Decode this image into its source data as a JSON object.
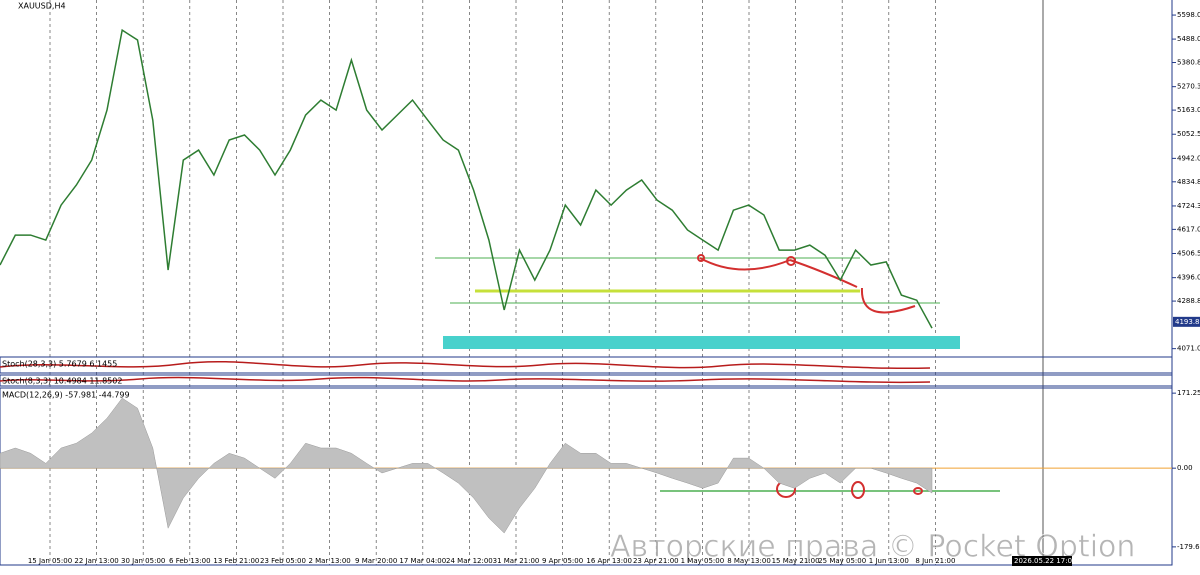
{
  "chart_data": [
    {
      "type": "line",
      "title": "XAUUSD,H4",
      "color": "#2e7d32",
      "values": [
        4454,
        4591,
        4591,
        4568,
        4728,
        4820,
        4934,
        5163,
        5529,
        5484,
        5117,
        4431,
        4934,
        4980,
        4866,
        5026,
        5049,
        4980,
        4866,
        4980,
        5140,
        5209,
        5163,
        5392,
        5163,
        5072,
        5140,
        5209,
        5117,
        5026,
        4980,
        4797,
        4568,
        4248,
        4522,
        4385,
        4522,
        4728,
        4637,
        4797,
        4728,
        4797,
        4843,
        4751,
        4705,
        4614,
        4568,
        4522,
        4705,
        4728,
        4683,
        4522,
        4522,
        4545,
        4499,
        4385,
        4522,
        4454,
        4468,
        4316,
        4293,
        4165
      ],
      "ylim": [
        4042,
        5667
      ],
      "yticks": [
        {
          "value": 5598.05,
          "label": "5598.05"
        },
        {
          "value": 5488.05,
          "label": "5488.05"
        },
        {
          "value": 5380.8,
          "label": "5380.80"
        },
        {
          "value": 5270.3,
          "label": "5270.30"
        },
        {
          "value": 5163,
          "label": "5163.00"
        },
        {
          "value": 5052.55,
          "label": "5052.55"
        },
        {
          "value": 4942.05,
          "label": "4942.05"
        },
        {
          "value": 4834.8,
          "label": "4834.80"
        },
        {
          "value": 4724.3,
          "label": "4724.30"
        },
        {
          "value": 4617.05,
          "label": "4617.05"
        },
        {
          "value": 4506.55,
          "label": "4506.55"
        },
        {
          "value": 4396.05,
          "label": "4396.05"
        },
        {
          "value": 4288.8,
          "label": "4288.80"
        },
        {
          "value": 4071.05,
          "label": "4071.05"
        }
      ],
      "current_price": {
        "value": 4193.8,
        "label": "4193.80"
      },
      "time_axis": [
        "15 Jan 05:00",
        "22 Jan 13:00",
        "30 Jan 05:00",
        "6 Feb 13:00",
        "13 Feb 21:00",
        "23 Feb 05:00",
        "2 Mar 13:00",
        "9 Mar 20:00",
        "17 Mar 04:00",
        "24 Mar 12:00",
        "31 Mar 21:00",
        "9 Apr 05:00",
        "16 Apr 13:00",
        "23 Apr 21:00",
        "1 May 05:00",
        "8 May 13:00",
        "15 May 21:00",
        "25 May 05:00",
        "1 Jun 13:00",
        "8 Jun 21:00"
      ],
      "cursor_time": "2026.05.22 17:00",
      "indicators": [
        "Stoch(28,3,3) 5.7679 6.1455",
        "Stoch(8,3,3) 10.4984 11.8502"
      ],
      "watermark": "Авторские права © Pocket Option"
    },
    {
      "type": "area",
      "title": "MACD(12,26,9) -57.981 -44.799",
      "color": "#c0c0c0",
      "values": [
        34,
        46,
        34,
        11,
        46,
        57,
        80,
        114,
        160,
        137,
        46,
        -137,
        -68,
        -23,
        11,
        34,
        23,
        0,
        -23,
        11,
        57,
        46,
        46,
        34,
        11,
        -11,
        0,
        11,
        11,
        -11,
        -34,
        -68,
        -114,
        -148,
        -91,
        -46,
        11,
        57,
        34,
        34,
        11,
        11,
        0,
        -11,
        -23,
        -34,
        -46,
        -34,
        23,
        23,
        0,
        -34,
        -46,
        -23,
        -11,
        -34,
        0,
        0,
        -11,
        -23,
        -34,
        -57
      ],
      "ylim": [
        -221,
        183
      ],
      "yticks": [
        171.25,
        {
          "value": 0,
          "label": "0.00"
        },
        {
          "value": -179.63,
          "label": "-179.63"
        }
      ]
    }
  ]
}
